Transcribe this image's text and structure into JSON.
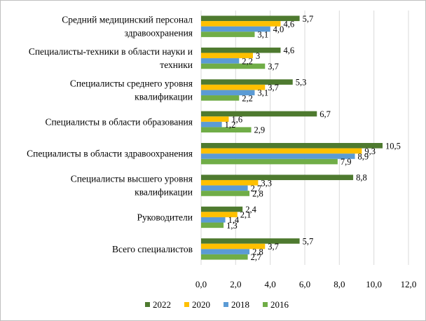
{
  "chart_data": {
    "type": "bar",
    "orientation": "horizontal",
    "categories": [
      [
        "Средний медицинский персонал",
        "здравоохранения"
      ],
      [
        "Специалисты-техники в области науки и",
        "техники"
      ],
      [
        "Специалисты среднего уровня",
        "квалификации"
      ],
      [
        "Специалисты в области образования"
      ],
      [
        "Специалисты в области здравоохранения"
      ],
      [
        "Специалисты высшего уровня",
        "квалификации"
      ],
      [
        "Руководители"
      ],
      [
        "Всего специалистов"
      ]
    ],
    "series": [
      {
        "name": "2022",
        "color": "#4e7a2f",
        "values": [
          5.7,
          4.6,
          5.3,
          6.7,
          10.5,
          8.8,
          2.4,
          5.7
        ],
        "labels": [
          "5,7",
          "4,6",
          "5,3",
          "6,7",
          "10,5",
          "8,8",
          "2,4",
          "5,7"
        ]
      },
      {
        "name": "2020",
        "color": "#ffc000",
        "values": [
          4.6,
          3.0,
          3.7,
          1.6,
          9.3,
          3.3,
          2.1,
          3.7
        ],
        "labels": [
          "4,6",
          "3",
          "3,7",
          "1,6",
          "9,3",
          "3,3",
          "2,1",
          "3,7"
        ]
      },
      {
        "name": "2018",
        "color": "#5b9bd5",
        "values": [
          4.0,
          2.2,
          3.1,
          1.2,
          8.9,
          2.7,
          1.4,
          2.8
        ],
        "labels": [
          "4,0",
          "2,2",
          "3,1",
          "1,2",
          "8,9",
          "2,7",
          "1,4",
          "2,8"
        ]
      },
      {
        "name": "2016",
        "color": "#70ad47",
        "values": [
          3.1,
          3.7,
          2.2,
          2.9,
          7.9,
          2.8,
          1.3,
          2.7
        ],
        "labels": [
          "3,1",
          "3,7",
          "2,2",
          "2,9",
          "7,9",
          "2,8",
          "1,3",
          "2,7"
        ]
      }
    ],
    "xlim": [
      0,
      12
    ],
    "x_ticks": [
      0,
      2,
      4,
      6,
      8,
      10,
      12
    ],
    "x_tick_labels": [
      "0,0",
      "2,0",
      "4,0",
      "6,0",
      "8,0",
      "10,0",
      "12,0"
    ],
    "legend_position": "bottom",
    "legend_order": [
      "2022",
      "2020",
      "2018",
      "2016"
    ],
    "grid": "vertical"
  }
}
